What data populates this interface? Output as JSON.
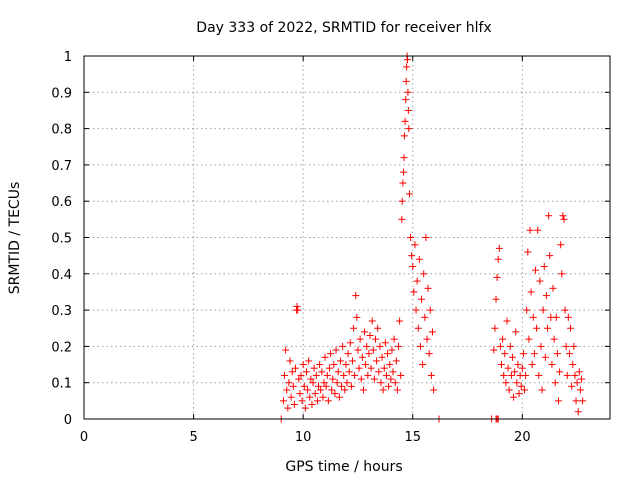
{
  "chart_data": {
    "type": "scatter",
    "title": "Day 333 of 2022, SRMTID for receiver hlfx",
    "xlabel": "GPS time / hours",
    "ylabel": "SRMTID / TECUs",
    "xlim": [
      0,
      24
    ],
    "ylim": [
      0,
      1
    ],
    "xticks": [
      0,
      5,
      10,
      15,
      20
    ],
    "yticks": [
      0,
      0.1,
      0.2,
      0.3,
      0.4,
      0.5,
      0.6,
      0.7,
      0.8,
      0.9,
      1
    ],
    "ytick_labels": [
      "0",
      "0.1",
      "0.2",
      "0.3",
      "0.4",
      "0.5",
      "0.6",
      "0.7",
      "0.8",
      "0.9",
      "1"
    ],
    "grid": true,
    "marker": "+",
    "series": [
      {
        "name": "SRMTID",
        "color": "#ff0000",
        "points": [
          [
            9.0,
            0.0
          ],
          [
            9.1,
            0.05
          ],
          [
            9.15,
            0.12
          ],
          [
            9.2,
            0.19
          ],
          [
            9.25,
            0.08
          ],
          [
            9.3,
            0.03
          ],
          [
            9.35,
            0.1
          ],
          [
            9.4,
            0.16
          ],
          [
            9.45,
            0.06
          ],
          [
            9.5,
            0.13
          ],
          [
            9.55,
            0.09
          ],
          [
            9.6,
            0.04
          ],
          [
            9.65,
            0.14
          ],
          [
            9.7,
            0.3
          ],
          [
            9.72,
            0.31
          ],
          [
            9.75,
            0.3
          ],
          [
            9.8,
            0.11
          ],
          [
            9.85,
            0.07
          ],
          [
            9.9,
            0.12
          ],
          [
            9.95,
            0.05
          ],
          [
            10.0,
            0.15
          ],
          [
            10.05,
            0.09
          ],
          [
            10.1,
            0.03
          ],
          [
            10.15,
            0.13
          ],
          [
            10.2,
            0.08
          ],
          [
            10.25,
            0.16
          ],
          [
            10.3,
            0.06
          ],
          [
            10.35,
            0.11
          ],
          [
            10.4,
            0.04
          ],
          [
            10.45,
            0.1
          ],
          [
            10.5,
            0.14
          ],
          [
            10.55,
            0.07
          ],
          [
            10.6,
            0.12
          ],
          [
            10.65,
            0.05
          ],
          [
            10.7,
            0.09
          ],
          [
            10.75,
            0.15
          ],
          [
            10.8,
            0.08
          ],
          [
            10.85,
            0.13
          ],
          [
            10.9,
            0.06
          ],
          [
            10.95,
            0.1
          ],
          [
            11.0,
            0.17
          ],
          [
            11.05,
            0.09
          ],
          [
            11.1,
            0.12
          ],
          [
            11.15,
            0.05
          ],
          [
            11.2,
            0.14
          ],
          [
            11.25,
            0.18
          ],
          [
            11.3,
            0.08
          ],
          [
            11.35,
            0.11
          ],
          [
            11.4,
            0.15
          ],
          [
            11.45,
            0.07
          ],
          [
            11.5,
            0.19
          ],
          [
            11.55,
            0.1
          ],
          [
            11.6,
            0.13
          ],
          [
            11.65,
            0.06
          ],
          [
            11.7,
            0.16
          ],
          [
            11.75,
            0.09
          ],
          [
            11.8,
            0.2
          ],
          [
            11.85,
            0.12
          ],
          [
            11.9,
            0.08
          ],
          [
            11.95,
            0.15
          ],
          [
            12.0,
            0.1
          ],
          [
            12.05,
            0.18
          ],
          [
            12.1,
            0.13
          ],
          [
            12.15,
            0.21
          ],
          [
            12.2,
            0.09
          ],
          [
            12.25,
            0.16
          ],
          [
            12.3,
            0.25
          ],
          [
            12.35,
            0.12
          ],
          [
            12.4,
            0.34
          ],
          [
            12.45,
            0.28
          ],
          [
            12.5,
            0.19
          ],
          [
            12.55,
            0.14
          ],
          [
            12.6,
            0.22
          ],
          [
            12.65,
            0.11
          ],
          [
            12.7,
            0.17
          ],
          [
            12.75,
            0.08
          ],
          [
            12.8,
            0.24
          ],
          [
            12.85,
            0.15
          ],
          [
            12.9,
            0.2
          ],
          [
            12.95,
            0.12
          ],
          [
            13.0,
            0.18
          ],
          [
            13.05,
            0.23
          ],
          [
            13.1,
            0.14
          ],
          [
            13.15,
            0.27
          ],
          [
            13.2,
            0.19
          ],
          [
            13.25,
            0.11
          ],
          [
            13.3,
            0.22
          ],
          [
            13.35,
            0.16
          ],
          [
            13.4,
            0.25
          ],
          [
            13.45,
            0.13
          ],
          [
            13.5,
            0.2
          ],
          [
            13.55,
            0.1
          ],
          [
            13.6,
            0.17
          ],
          [
            13.65,
            0.08
          ],
          [
            13.7,
            0.14
          ],
          [
            13.75,
            0.21
          ],
          [
            13.8,
            0.12
          ],
          [
            13.85,
            0.18
          ],
          [
            13.9,
            0.09
          ],
          [
            13.95,
            0.15
          ],
          [
            14.0,
            0.11
          ],
          [
            14.05,
            0.19
          ],
          [
            14.1,
            0.13
          ],
          [
            14.15,
            0.22
          ],
          [
            14.2,
            0.1
          ],
          [
            14.25,
            0.16
          ],
          [
            14.3,
            0.08
          ],
          [
            14.35,
            0.2
          ],
          [
            14.4,
            0.27
          ],
          [
            14.45,
            0.12
          ],
          [
            14.5,
            0.55
          ],
          [
            14.52,
            0.6
          ],
          [
            14.55,
            0.65
          ],
          [
            14.58,
            0.68
          ],
          [
            14.6,
            0.72
          ],
          [
            14.62,
            0.78
          ],
          [
            14.65,
            0.82
          ],
          [
            14.68,
            0.88
          ],
          [
            14.7,
            0.93
          ],
          [
            14.72,
            0.97
          ],
          [
            14.74,
            1.0
          ],
          [
            14.76,
            0.99
          ],
          [
            14.78,
            0.9
          ],
          [
            14.8,
            0.85
          ],
          [
            14.82,
            0.8
          ],
          [
            14.85,
            0.62
          ],
          [
            14.9,
            0.5
          ],
          [
            14.95,
            0.45
          ],
          [
            15.0,
            0.42
          ],
          [
            15.05,
            0.35
          ],
          [
            15.1,
            0.48
          ],
          [
            15.15,
            0.3
          ],
          [
            15.2,
            0.38
          ],
          [
            15.25,
            0.25
          ],
          [
            15.3,
            0.44
          ],
          [
            15.35,
            0.2
          ],
          [
            15.4,
            0.33
          ],
          [
            15.45,
            0.15
          ],
          [
            15.5,
            0.4
          ],
          [
            15.55,
            0.28
          ],
          [
            15.6,
            0.5
          ],
          [
            15.65,
            0.22
          ],
          [
            15.7,
            0.36
          ],
          [
            15.75,
            0.18
          ],
          [
            15.8,
            0.3
          ],
          [
            15.85,
            0.12
          ],
          [
            15.9,
            0.24
          ],
          [
            15.95,
            0.08
          ],
          [
            16.2,
            0.0
          ],
          [
            18.6,
            0.0
          ],
          [
            18.8,
            0.0
          ],
          [
            18.85,
            0.0
          ],
          [
            18.9,
            0.0
          ],
          [
            18.7,
            0.19
          ],
          [
            18.75,
            0.25
          ],
          [
            18.8,
            0.33
          ],
          [
            18.85,
            0.39
          ],
          [
            18.9,
            0.44
          ],
          [
            18.95,
            0.47
          ],
          [
            19.0,
            0.2
          ],
          [
            19.05,
            0.15
          ],
          [
            19.1,
            0.22
          ],
          [
            19.15,
            0.12
          ],
          [
            19.2,
            0.18
          ],
          [
            19.25,
            0.1
          ],
          [
            19.3,
            0.27
          ],
          [
            19.35,
            0.14
          ],
          [
            19.4,
            0.08
          ],
          [
            19.45,
            0.2
          ],
          [
            19.5,
            0.12
          ],
          [
            19.55,
            0.17
          ],
          [
            19.6,
            0.06
          ],
          [
            19.65,
            0.13
          ],
          [
            19.7,
            0.24
          ],
          [
            19.75,
            0.1
          ],
          [
            19.8,
            0.15
          ],
          [
            19.85,
            0.07
          ],
          [
            19.9,
            0.12
          ],
          [
            19.95,
            0.09
          ],
          [
            20.0,
            0.14
          ],
          [
            20.05,
            0.18
          ],
          [
            20.1,
            0.08
          ],
          [
            20.15,
            0.12
          ],
          [
            20.2,
            0.3
          ],
          [
            20.25,
            0.46
          ],
          [
            20.3,
            0.22
          ],
          [
            20.35,
            0.52
          ],
          [
            20.4,
            0.35
          ],
          [
            20.45,
            0.15
          ],
          [
            20.5,
            0.28
          ],
          [
            20.55,
            0.18
          ],
          [
            20.6,
            0.41
          ],
          [
            20.65,
            0.25
          ],
          [
            20.7,
            0.52
          ],
          [
            20.75,
            0.12
          ],
          [
            20.8,
            0.38
          ],
          [
            20.85,
            0.2
          ],
          [
            20.9,
            0.08
          ],
          [
            20.95,
            0.3
          ],
          [
            21.0,
            0.42
          ],
          [
            21.05,
            0.17
          ],
          [
            21.1,
            0.34
          ],
          [
            21.15,
            0.25
          ],
          [
            21.2,
            0.56
          ],
          [
            21.25,
            0.45
          ],
          [
            21.3,
            0.28
          ],
          [
            21.35,
            0.15
          ],
          [
            21.4,
            0.36
          ],
          [
            21.45,
            0.22
          ],
          [
            21.5,
            0.1
          ],
          [
            21.55,
            0.28
          ],
          [
            21.6,
            0.18
          ],
          [
            21.65,
            0.05
          ],
          [
            21.7,
            0.13
          ],
          [
            21.75,
            0.48
          ],
          [
            21.8,
            0.4
          ],
          [
            21.85,
            0.56
          ],
          [
            21.9,
            0.55
          ],
          [
            21.95,
            0.3
          ],
          [
            22.0,
            0.2
          ],
          [
            22.05,
            0.12
          ],
          [
            22.1,
            0.28
          ],
          [
            22.15,
            0.18
          ],
          [
            22.2,
            0.25
          ],
          [
            22.25,
            0.09
          ],
          [
            22.3,
            0.15
          ],
          [
            22.35,
            0.2
          ],
          [
            22.4,
            0.12
          ],
          [
            22.45,
            0.05
          ],
          [
            22.5,
            0.1
          ],
          [
            22.55,
            0.02
          ],
          [
            22.6,
            0.13
          ],
          [
            22.65,
            0.08
          ],
          [
            22.7,
            0.11
          ],
          [
            22.75,
            0.05
          ]
        ]
      }
    ]
  }
}
